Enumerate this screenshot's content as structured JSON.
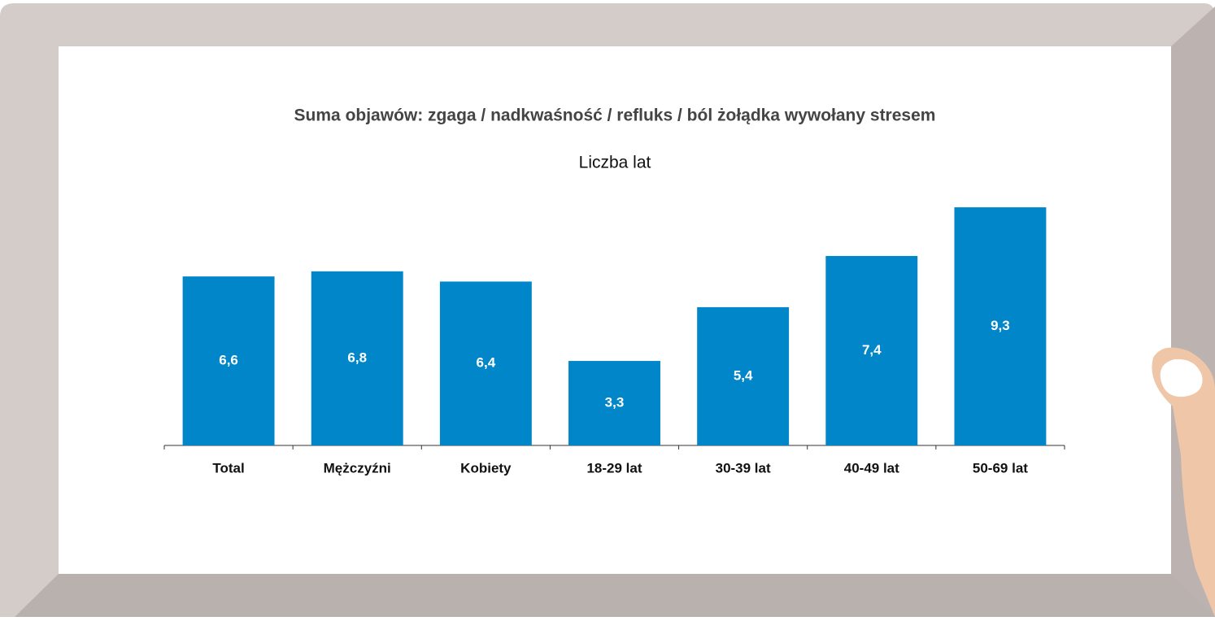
{
  "chart_data": {
    "type": "bar",
    "title": "Suma objawów: zgaga / nadkwaśność / refluks / ból żołądka wywołany stresem",
    "subtitle": "Liczba lat",
    "categories": [
      "Total",
      "Mężczyźni",
      "Kobiety",
      "18-29 lat",
      "30-39 lat",
      "40-49 lat",
      "50-69 lat"
    ],
    "values": [
      6.6,
      6.8,
      6.4,
      3.3,
      5.4,
      7.4,
      9.3
    ],
    "value_labels": [
      "6,6",
      "6,8",
      "6,4",
      "3,3",
      "5,4",
      "7,4",
      "9,3"
    ],
    "color": "#0086c9",
    "ylim": [
      0,
      10
    ]
  }
}
